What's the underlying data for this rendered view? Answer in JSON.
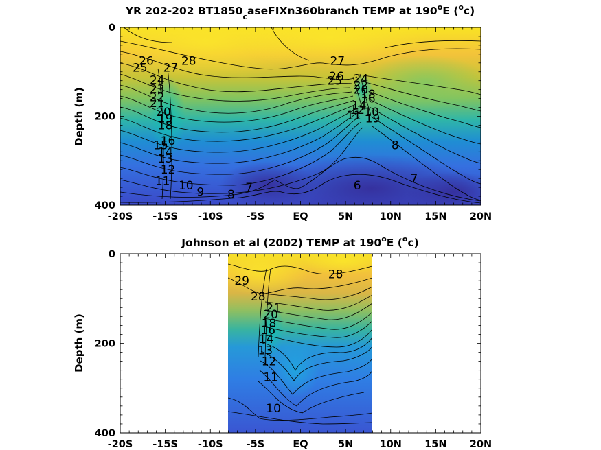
{
  "chart_data": [
    {
      "type": "heatmap",
      "title_main": "YR 202-202 BT1850",
      "title_sub": "c",
      "title_rest": "aseFIXn360branch TEMP at 190",
      "title_deg": "o",
      "title_unit_pre": "E (",
      "title_unit_deg": "o",
      "title_unit_post": "c)",
      "ylabel": "Depth (m)",
      "xlim": [
        -20,
        20
      ],
      "ylim": [
        0,
        400
      ],
      "x_ticks": [
        -20,
        -15,
        -10,
        -5,
        0,
        5,
        10,
        15,
        20
      ],
      "x_tick_labels": [
        "-20S",
        "-15S",
        "-10S",
        "-5S",
        "EQ",
        "5N",
        "10N",
        "15N",
        "20N"
      ],
      "y_ticks": [
        0,
        200,
        400
      ],
      "y_tick_labels": [
        "0",
        "200",
        "400"
      ],
      "data_extent": [
        -20,
        20
      ],
      "grid": false,
      "contour_labels": [
        {
          "text": "26",
          "x": -17.1,
          "y": 75
        },
        {
          "text": "25",
          "x": -17.8,
          "y": 90
        },
        {
          "text": "27",
          "x": -14.4,
          "y": 90
        },
        {
          "text": "28",
          "x": -12.4,
          "y": 75
        },
        {
          "text": "24",
          "x": -15.9,
          "y": 118
        },
        {
          "text": "23",
          "x": -15.9,
          "y": 138
        },
        {
          "text": "22",
          "x": -15.9,
          "y": 157
        },
        {
          "text": "21",
          "x": -15.9,
          "y": 170
        },
        {
          "text": "20",
          "x": -15.2,
          "y": 190
        },
        {
          "text": "19",
          "x": -15.0,
          "y": 205
        },
        {
          "text": "18",
          "x": -15.0,
          "y": 220
        },
        {
          "text": "16",
          "x": -14.7,
          "y": 255
        },
        {
          "text": "15",
          "x": -15.5,
          "y": 265
        },
        {
          "text": "14",
          "x": -15.0,
          "y": 280
        },
        {
          "text": "13",
          "x": -15.0,
          "y": 295
        },
        {
          "text": "12",
          "x": -14.7,
          "y": 320
        },
        {
          "text": "11",
          "x": -15.3,
          "y": 345
        },
        {
          "text": "10",
          "x": -12.7,
          "y": 355
        },
        {
          "text": "9",
          "x": -11.1,
          "y": 370
        },
        {
          "text": "8",
          "x": -7.7,
          "y": 375
        },
        {
          "text": "7",
          "x": -5.7,
          "y": 360
        },
        {
          "text": "27",
          "x": 4.1,
          "y": 75
        },
        {
          "text": "26",
          "x": 4.0,
          "y": 110
        },
        {
          "text": "25",
          "x": 3.8,
          "y": 120
        },
        {
          "text": "24",
          "x": 6.7,
          "y": 115
        },
        {
          "text": "22",
          "x": 6.7,
          "y": 130
        },
        {
          "text": "20",
          "x": 6.7,
          "y": 140
        },
        {
          "text": "18",
          "x": 7.5,
          "y": 150
        },
        {
          "text": "16",
          "x": 7.5,
          "y": 160
        },
        {
          "text": "14",
          "x": 6.5,
          "y": 175
        },
        {
          "text": "12",
          "x": 6.3,
          "y": 185
        },
        {
          "text": "11",
          "x": 5.9,
          "y": 198
        },
        {
          "text": "10",
          "x": 7.9,
          "y": 190
        },
        {
          "text": "19",
          "x": 8.0,
          "y": 205
        },
        {
          "text": "8",
          "x": 10.5,
          "y": 265
        },
        {
          "text": "7",
          "x": 12.6,
          "y": 340
        },
        {
          "text": "6",
          "x": 6.3,
          "y": 355
        }
      ]
    },
    {
      "type": "heatmap",
      "title_main": "Johnson et al (2002) TEMP at 190",
      "title_deg": "o",
      "title_unit_pre": "E (",
      "title_unit_deg": "o",
      "title_unit_post": "c)",
      "ylabel": "Depth (m)",
      "xlim": [
        -20,
        20
      ],
      "ylim": [
        0,
        400
      ],
      "x_ticks": [
        -20,
        -15,
        -10,
        -5,
        0,
        5,
        10,
        15,
        20
      ],
      "x_tick_labels": [
        "-20S",
        "-15S",
        "-10S",
        "-5S",
        "EQ",
        "5N",
        "10N",
        "15N",
        "20N"
      ],
      "y_ticks": [
        0,
        200,
        400
      ],
      "y_tick_labels": [
        "0",
        "200",
        "400"
      ],
      "data_extent": [
        -8,
        8
      ],
      "grid": false,
      "contour_labels": [
        {
          "text": "29",
          "x": -6.5,
          "y": 60
        },
        {
          "text": "28",
          "x": 3.9,
          "y": 45
        },
        {
          "text": "28",
          "x": -4.7,
          "y": 95
        },
        {
          "text": "21",
          "x": -3.0,
          "y": 120
        },
        {
          "text": "20",
          "x": -3.3,
          "y": 135
        },
        {
          "text": "18",
          "x": -3.5,
          "y": 155
        },
        {
          "text": "16",
          "x": -3.6,
          "y": 170
        },
        {
          "text": "14",
          "x": -3.8,
          "y": 190
        },
        {
          "text": "13",
          "x": -3.9,
          "y": 215
        },
        {
          "text": "12",
          "x": -3.5,
          "y": 240
        },
        {
          "text": "11",
          "x": -3.3,
          "y": 275
        },
        {
          "text": "10",
          "x": -3.0,
          "y": 345
        }
      ]
    }
  ]
}
